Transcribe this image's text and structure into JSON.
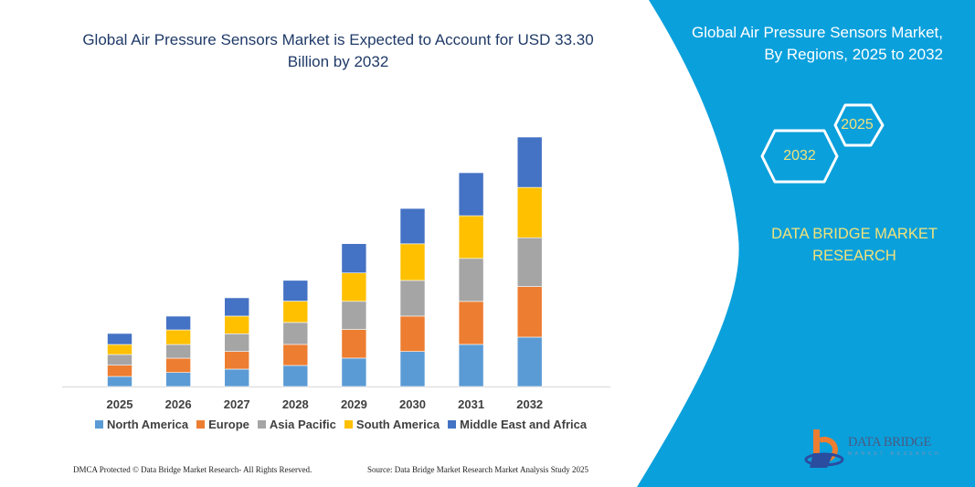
{
  "chart_data": {
    "type": "bar",
    "stacked": true,
    "title": "Global Air Pressure Sensors Market is Expected to Account for USD 33.30 Billion by 2032",
    "categories": [
      "2025",
      "2026",
      "2027",
      "2028",
      "2029",
      "2030",
      "2031",
      "2032"
    ],
    "series": [
      {
        "name": "North America",
        "color": "#5b9bd5",
        "values": [
          1.34,
          1.87,
          2.32,
          2.81,
          3.79,
          4.68,
          5.62,
          6.59
        ]
      },
      {
        "name": "Europe",
        "color": "#ed7d31",
        "values": [
          1.51,
          1.91,
          2.36,
          2.81,
          3.83,
          4.72,
          5.74,
          6.76
        ]
      },
      {
        "name": "Asia Pacific",
        "color": "#a5a5a5",
        "values": [
          1.42,
          1.83,
          2.36,
          2.93,
          3.75,
          4.76,
          5.74,
          6.51
        ]
      },
      {
        "name": "South America",
        "color": "#ffc000",
        "values": [
          1.34,
          1.95,
          2.36,
          2.85,
          3.79,
          4.89,
          5.7,
          6.72
        ]
      },
      {
        "name": "Middle East and Africa",
        "color": "#4472c4",
        "values": [
          1.47,
          1.83,
          2.44,
          2.77,
          3.91,
          4.72,
          5.74,
          6.72
        ]
      }
    ],
    "ylim": [
      0,
      33.3
    ],
    "grid": false,
    "legend": "bottom",
    "xlabel": "",
    "ylabel": ""
  },
  "header": {
    "title_line1": "Global Air Pressure Sensors Market is Expected to Account for USD 33.30",
    "title_line2": "Billion by 2032"
  },
  "panel": {
    "title_line1": "Global Air Pressure Sensors Market,",
    "title_line2": "By Regions, 2025 to 2032",
    "hex_start": "2025",
    "hex_end": "2032",
    "brand_line1": "DATA BRIDGE MARKET",
    "brand_line2": "RESEARCH",
    "color": "#0aa0dc",
    "text_accent": "#f2e27a"
  },
  "logo": {
    "name": "DATA BRIDGE",
    "sub": "MARKET RESEARCH"
  },
  "footer": {
    "left": "DMCA Protected © Data Bridge Market Research-  All Rights Reserved.",
    "right": "Source: Data Bridge Market Research  Market Analysis Study 2025"
  }
}
